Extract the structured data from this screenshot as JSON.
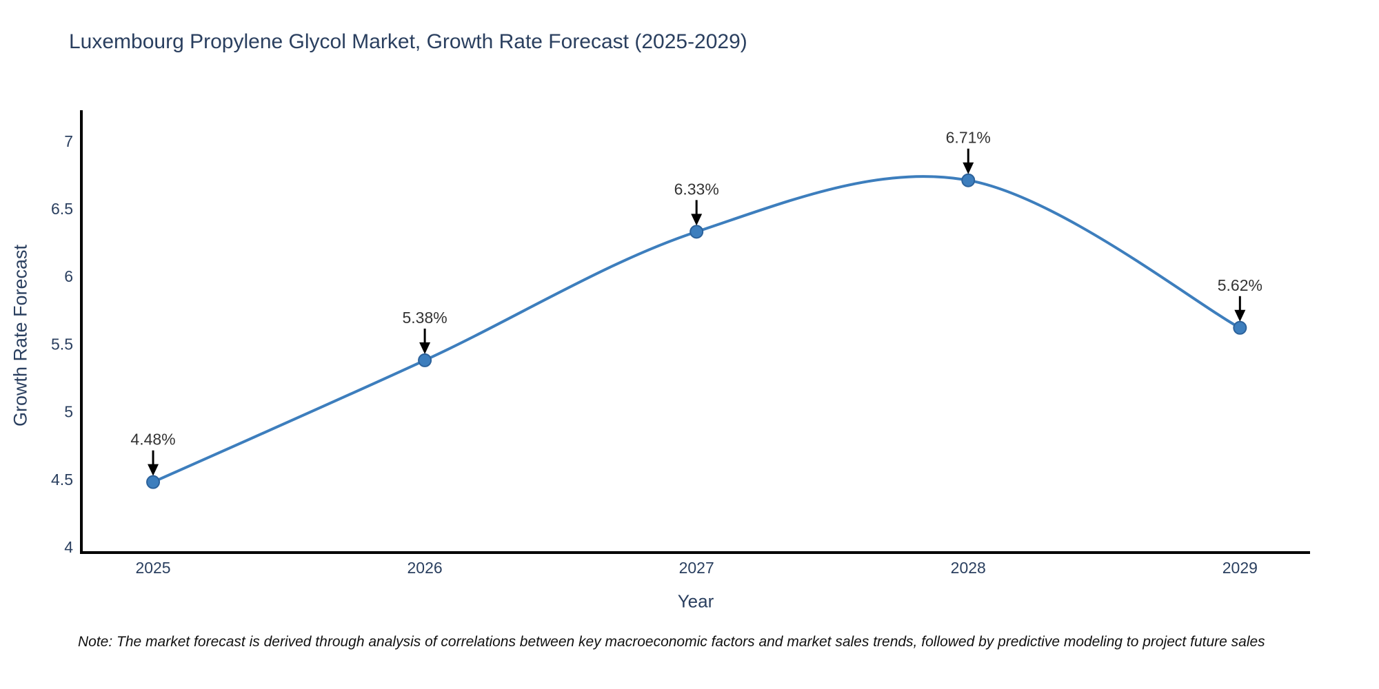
{
  "chart_data": {
    "type": "line",
    "title": "Luxembourg Propylene Glycol Market, Growth Rate Forecast (2025-2029)",
    "xlabel": "Year",
    "ylabel": "Growth Rate Forecast",
    "x": [
      2025,
      2026,
      2027,
      2028,
      2029
    ],
    "series": [
      {
        "name": "Growth Rate Forecast",
        "values": [
          4.48,
          5.38,
          6.33,
          6.71,
          5.62
        ]
      }
    ],
    "point_labels": [
      "4.48%",
      "5.38%",
      "6.33%",
      "6.71%",
      "5.62%"
    ],
    "xtick_labels": [
      "2025",
      "2026",
      "2027",
      "2028",
      "2029"
    ],
    "ytick_values": [
      4,
      4.5,
      5,
      5.5,
      6,
      6.5,
      7
    ],
    "ytick_labels": [
      "4",
      "4.5",
      "5",
      "5.5",
      "6",
      "6.5",
      "7"
    ],
    "xlim": [
      2024.736,
      2029.258
    ],
    "ylim": [
      3.959,
      7.228
    ],
    "grid": false,
    "legend": false,
    "line_shape": "spline",
    "colors": {
      "line": "#3d7ebd",
      "marker_fill": "#3d7ebd",
      "marker_edge": "#2c629b",
      "arrow": "#000000",
      "axis": "#000000",
      "tick_text": "#2a3f5f",
      "annotation_text": "#333333",
      "title_text": "#2a3f5f",
      "background": "#ffffff"
    }
  },
  "note": {
    "text": "Note: The market forecast is derived through analysis of correlations between key macroeconomic factors and market sales trends, followed by predictive modeling to project future sales"
  }
}
